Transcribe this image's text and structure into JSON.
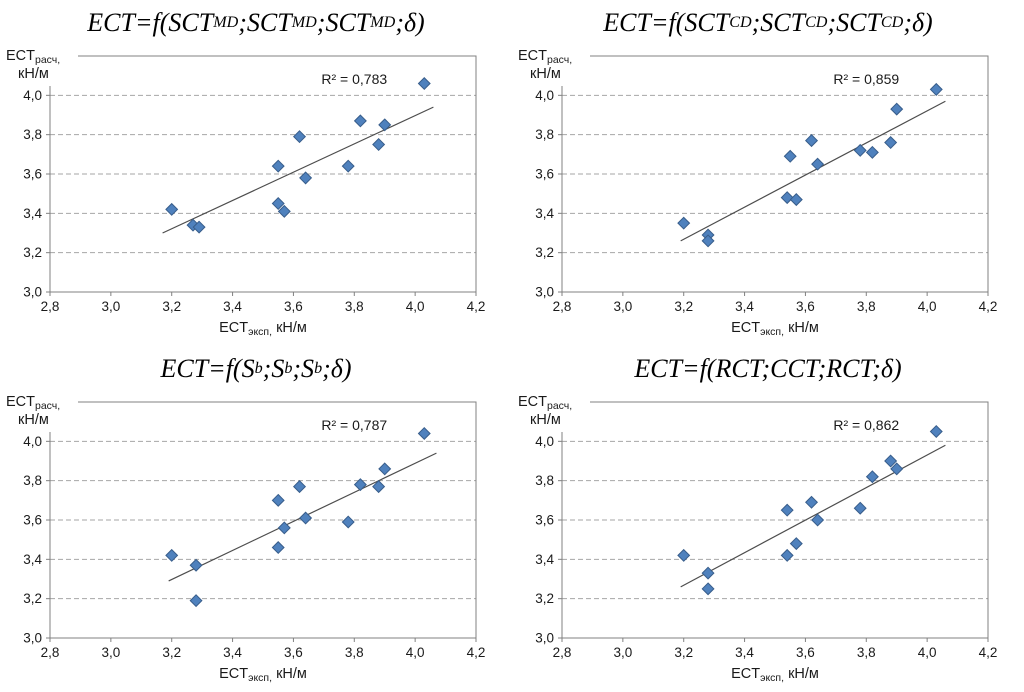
{
  "colors": {
    "marker_fill": "#4F81BD",
    "marker_stroke": "#385D8A",
    "trendline": "#4D4D4D",
    "gridline": "#A6A6A6",
    "axis_frame": "#808080",
    "text": "#1A1A1A"
  },
  "axes": {
    "x": {
      "min": 2.8,
      "max": 4.2,
      "tick_values": [
        2.8,
        3.0,
        3.2,
        3.4,
        3.6,
        3.8,
        4.0,
        4.2
      ],
      "tick_labels": [
        "2,8",
        "3,0",
        "3,2",
        "3,4",
        "3,6",
        "3,8",
        "4,0",
        "4,2"
      ],
      "label_parts": [
        [
          "ECT",
          ""
        ],
        [
          "эксп,",
          "sub"
        ],
        [
          " кН/м",
          ""
        ]
      ]
    },
    "y": {
      "min": 3.0,
      "max": 4.2,
      "tick_values": [
        3.0,
        3.2,
        3.4,
        3.6,
        3.8,
        4.0
      ],
      "tick_labels": [
        "3,0",
        "3,2",
        "3,4",
        "3,6",
        "3,8",
        "4,0"
      ],
      "gridline_values": [
        3.2,
        3.4,
        3.6,
        3.8,
        4.0
      ],
      "label_line1_parts": [
        [
          "ECT",
          ""
        ],
        [
          "расч,",
          "sub"
        ]
      ],
      "label_line2": "кН/м"
    }
  },
  "chart_data": [
    {
      "type": "scatter",
      "title_parts": [
        [
          "ECT=f(SCT",
          ""
        ],
        [
          "MD",
          "sub"
        ],
        [
          ";SCT",
          ""
        ],
        [
          "MD",
          "sub"
        ],
        [
          ";SCT",
          ""
        ],
        [
          "MD",
          "sub"
        ],
        [
          ";δ)",
          ""
        ]
      ],
      "r2_label": "R² = 0,783",
      "xlabel": "ECTэксп, кН/м",
      "ylabel": "ECTрасч, кН/м",
      "xlim": [
        2.8,
        4.2
      ],
      "ylim": [
        3.0,
        4.2
      ],
      "points": [
        [
          3.2,
          3.42
        ],
        [
          3.27,
          3.34
        ],
        [
          3.29,
          3.33
        ],
        [
          3.55,
          3.64
        ],
        [
          3.55,
          3.45
        ],
        [
          3.57,
          3.41
        ],
        [
          3.62,
          3.79
        ],
        [
          3.64,
          3.58
        ],
        [
          3.78,
          3.64
        ],
        [
          3.82,
          3.87
        ],
        [
          3.88,
          3.75
        ],
        [
          3.9,
          3.85
        ],
        [
          4.03,
          4.06
        ]
      ],
      "trendline": {
        "x1": 3.17,
        "y1": 3.3,
        "x2": 4.06,
        "y2": 3.94
      }
    },
    {
      "type": "scatter",
      "title_parts": [
        [
          "ECT=f(SCT",
          ""
        ],
        [
          "CD",
          "sub"
        ],
        [
          ";SCT",
          ""
        ],
        [
          "CD",
          "sub"
        ],
        [
          ";SCT",
          ""
        ],
        [
          "CD",
          "sub"
        ],
        [
          ";δ)",
          ""
        ]
      ],
      "r2_label": "R² = 0,859",
      "xlabel": "ECTэксп, кН/м",
      "ylabel": "ECTрасч, кН/м",
      "xlim": [
        2.8,
        4.2
      ],
      "ylim": [
        3.0,
        4.2
      ],
      "points": [
        [
          3.2,
          3.35
        ],
        [
          3.28,
          3.29
        ],
        [
          3.28,
          3.26
        ],
        [
          3.54,
          3.48
        ],
        [
          3.57,
          3.47
        ],
        [
          3.55,
          3.69
        ],
        [
          3.62,
          3.77
        ],
        [
          3.64,
          3.65
        ],
        [
          3.78,
          3.72
        ],
        [
          3.82,
          3.71
        ],
        [
          3.88,
          3.76
        ],
        [
          3.9,
          3.93
        ],
        [
          4.03,
          4.03
        ]
      ],
      "trendline": {
        "x1": 3.19,
        "y1": 3.26,
        "x2": 4.06,
        "y2": 3.97
      }
    },
    {
      "type": "scatter",
      "title_parts": [
        [
          "ECT=f(S",
          ""
        ],
        [
          "b",
          "sub"
        ],
        [
          ";S",
          ""
        ],
        [
          "b",
          "sub"
        ],
        [
          ";S",
          ""
        ],
        [
          "b",
          "sub"
        ],
        [
          ";δ)",
          ""
        ]
      ],
      "r2_label": "R² = 0,787",
      "xlabel": "ECTэксп, кН/м",
      "ylabel": "ECTрасч, кН/м",
      "xlim": [
        2.8,
        4.2
      ],
      "ylim": [
        3.0,
        4.2
      ],
      "points": [
        [
          3.2,
          3.42
        ],
        [
          3.28,
          3.37
        ],
        [
          3.28,
          3.19
        ],
        [
          3.55,
          3.7
        ],
        [
          3.55,
          3.46
        ],
        [
          3.57,
          3.56
        ],
        [
          3.62,
          3.77
        ],
        [
          3.64,
          3.61
        ],
        [
          3.78,
          3.59
        ],
        [
          3.82,
          3.78
        ],
        [
          3.88,
          3.77
        ],
        [
          3.9,
          3.86
        ],
        [
          4.03,
          4.04
        ]
      ],
      "trendline": {
        "x1": 3.19,
        "y1": 3.29,
        "x2": 4.07,
        "y2": 3.94
      }
    },
    {
      "type": "scatter",
      "title_parts": [
        [
          "ECT=f(RCT;CCT;RCT;δ)",
          ""
        ]
      ],
      "r2_label": "R² = 0,862",
      "xlabel": "ECTэксп, кН/м",
      "ylabel": "ECTрасч, кН/м",
      "xlim": [
        2.8,
        4.2
      ],
      "ylim": [
        3.0,
        4.2
      ],
      "points": [
        [
          3.2,
          3.42
        ],
        [
          3.28,
          3.33
        ],
        [
          3.28,
          3.25
        ],
        [
          3.54,
          3.65
        ],
        [
          3.54,
          3.42
        ],
        [
          3.57,
          3.48
        ],
        [
          3.62,
          3.69
        ],
        [
          3.64,
          3.6
        ],
        [
          3.78,
          3.66
        ],
        [
          3.82,
          3.82
        ],
        [
          3.88,
          3.9
        ],
        [
          3.9,
          3.86
        ],
        [
          4.03,
          4.05
        ]
      ],
      "trendline": {
        "x1": 3.19,
        "y1": 3.26,
        "x2": 4.06,
        "y2": 3.98
      }
    }
  ]
}
